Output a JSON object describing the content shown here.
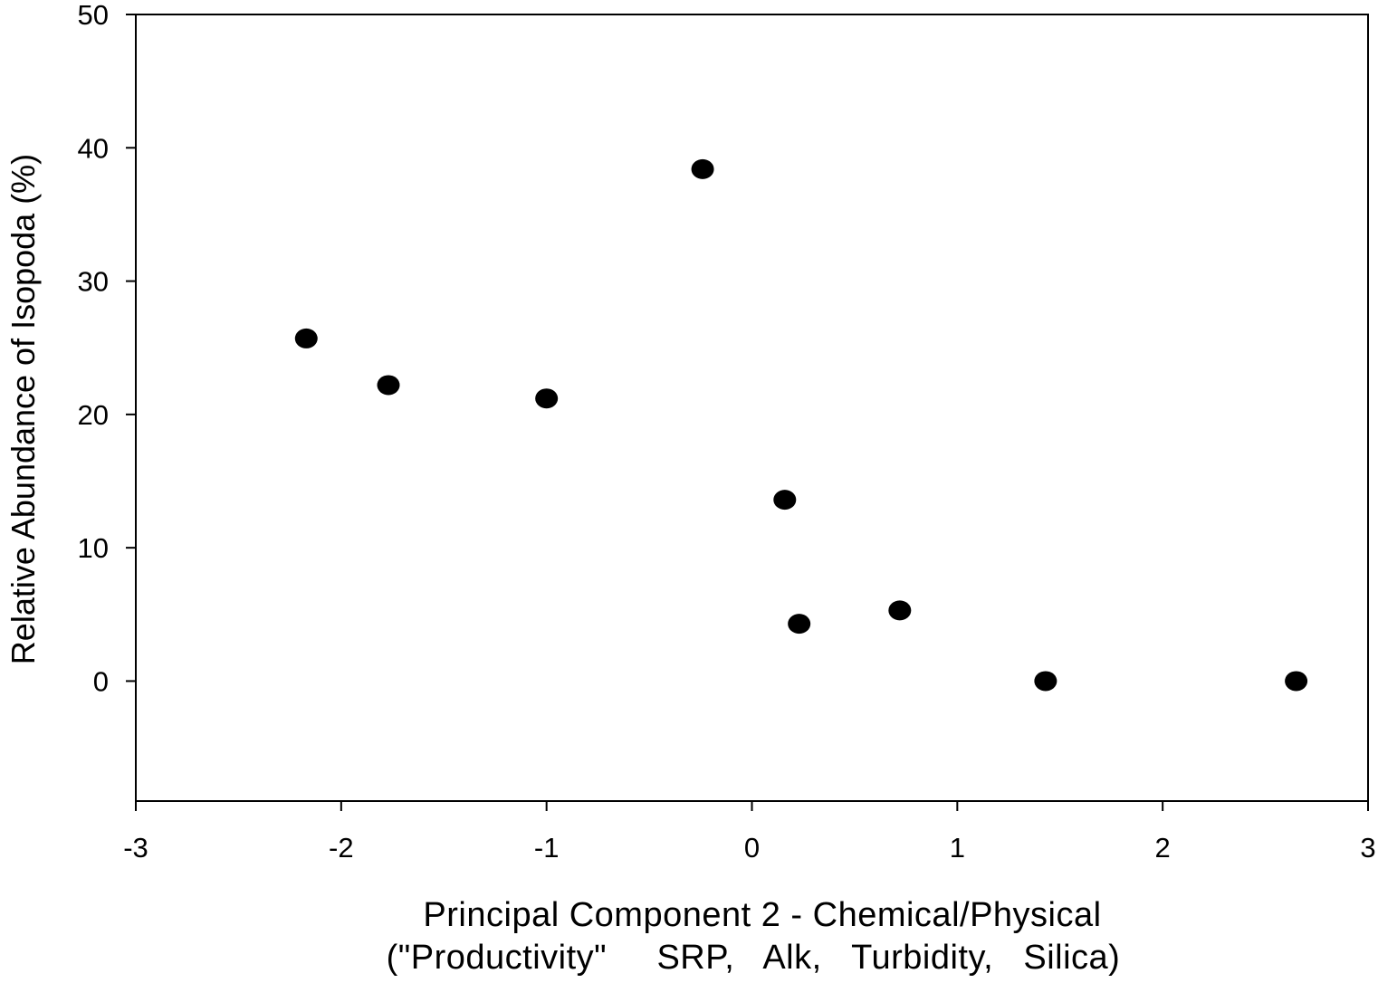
{
  "chart_data": {
    "type": "scatter",
    "title": "",
    "xlabel_lines": [
      "Principal Component 2 - Chemical/Physical",
      "(\"Productivity\"     SRP,   Alk,   Turbidity,   Silica)"
    ],
    "ylabel": "Relative Abundance of Isopoda (%)",
    "xlim": [
      -3,
      3
    ],
    "ylim": [
      -9,
      50
    ],
    "xticks": [
      -3,
      -2,
      -1,
      0,
      1,
      2,
      3
    ],
    "yticks": [
      0,
      10,
      20,
      30,
      40,
      50
    ],
    "grid": false,
    "legend": "none",
    "marker_color": "#000000",
    "points": [
      {
        "x": -2.17,
        "y": 25.7
      },
      {
        "x": -1.77,
        "y": 22.2
      },
      {
        "x": -1.0,
        "y": 21.2
      },
      {
        "x": -0.24,
        "y": 38.4
      },
      {
        "x": 0.16,
        "y": 13.6
      },
      {
        "x": 0.23,
        "y": 4.3
      },
      {
        "x": 0.72,
        "y": 5.3
      },
      {
        "x": 1.43,
        "y": 0.0
      },
      {
        "x": 2.65,
        "y": 0.0
      }
    ]
  }
}
